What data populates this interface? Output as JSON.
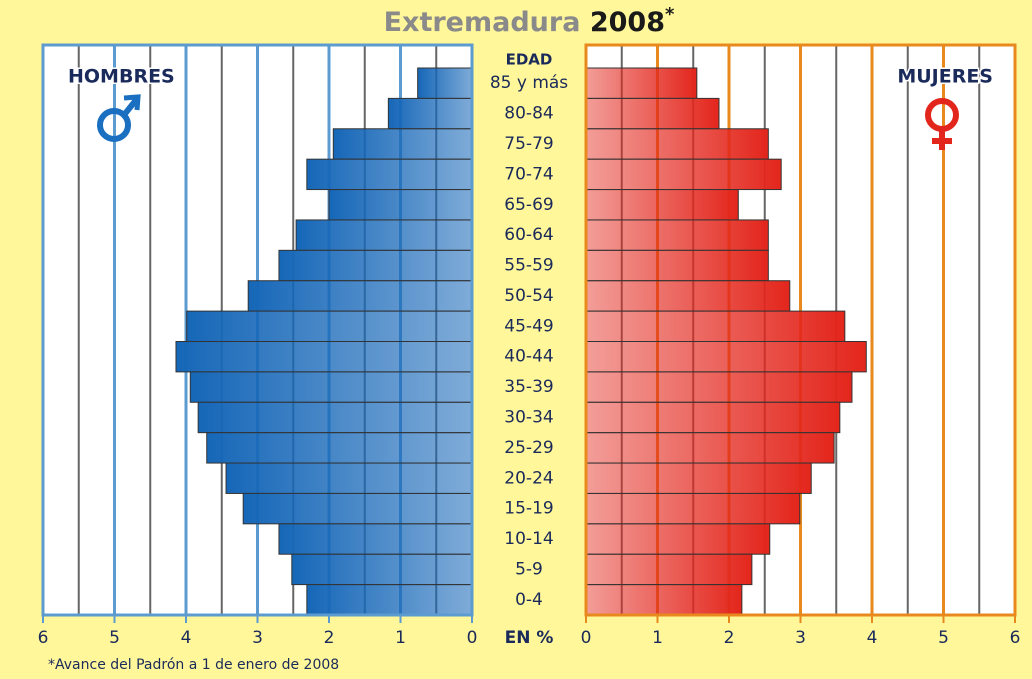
{
  "chart_data": {
    "type": "population_pyramid",
    "title": "Extremadura",
    "title_year": "2008",
    "title_mark": "*",
    "axis_title": "EDAD",
    "x_axis_label": "EN %",
    "footnote": "*Avance del Padrón a 1 de enero de 2008",
    "categories": [
      "85 y más",
      "80-84",
      "75-79",
      "70-74",
      "65-69",
      "60-64",
      "55-59",
      "50-54",
      "45-49",
      "40-44",
      "35-39",
      "30-34",
      "25-29",
      "20-24",
      "15-19",
      "10-14",
      "5-9",
      "0-4"
    ],
    "series": [
      {
        "name": "HOMBRES",
        "color": "#1667b8",
        "frame": "#5b9bd0",
        "values": [
          0.76,
          1.17,
          1.94,
          2.31,
          2.0,
          2.46,
          2.7,
          3.13,
          3.99,
          4.14,
          3.94,
          3.83,
          3.71,
          3.44,
          3.2,
          2.7,
          2.52,
          2.31
        ]
      },
      {
        "name": "MUJERES",
        "color": "#e3261c",
        "frame": "#e8891e",
        "values": [
          1.55,
          1.86,
          2.55,
          2.73,
          2.13,
          2.55,
          2.55,
          2.85,
          3.62,
          3.92,
          3.72,
          3.55,
          3.47,
          3.15,
          2.99,
          2.57,
          2.32,
          2.18
        ]
      }
    ],
    "xlim": [
      0,
      6
    ],
    "xticks": [
      0,
      1,
      2,
      3,
      4,
      5,
      6
    ],
    "minor_xticks": [
      0.5,
      1.5,
      2.5,
      3.5,
      4.5,
      5.5
    ],
    "grid": true
  }
}
